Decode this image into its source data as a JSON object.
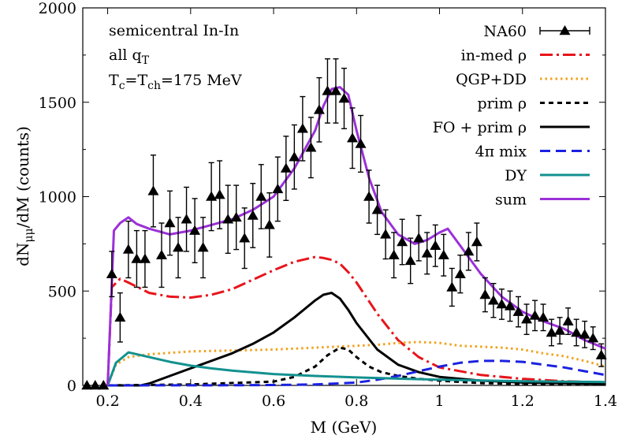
{
  "chart_data": {
    "type": "line",
    "xlabel": "M (GeV)",
    "ylabel": "dN_μμ/dM (counts)",
    "xlim": [
      0.14,
      1.4
    ],
    "ylim": [
      0,
      2000
    ],
    "grid": false,
    "legend_position": "top-right",
    "xticks": [
      "0.2",
      "0.4",
      "0.6",
      "0.8",
      "1",
      "1.2",
      "1.4"
    ],
    "yticks": [
      "0",
      "500",
      "1000",
      "1500",
      "2000"
    ],
    "annotations": [
      "semicentral In-In",
      "all q_T",
      "T_c=T_ch=175 MeV"
    ],
    "data_points": {
      "name": "NA60",
      "color": "#000000",
      "x": [
        0.15,
        0.17,
        0.19,
        0.21,
        0.23,
        0.25,
        0.27,
        0.29,
        0.31,
        0.33,
        0.35,
        0.37,
        0.39,
        0.41,
        0.43,
        0.45,
        0.47,
        0.49,
        0.51,
        0.53,
        0.55,
        0.57,
        0.59,
        0.61,
        0.63,
        0.65,
        0.67,
        0.69,
        0.71,
        0.73,
        0.75,
        0.77,
        0.79,
        0.81,
        0.83,
        0.85,
        0.87,
        0.89,
        0.91,
        0.93,
        0.95,
        0.97,
        0.99,
        1.01,
        1.03,
        1.05,
        1.07,
        1.09,
        1.11,
        1.13,
        1.15,
        1.17,
        1.19,
        1.21,
        1.23,
        1.25,
        1.27,
        1.29,
        1.31,
        1.33,
        1.35,
        1.37,
        1.39
      ],
      "y": [
        0,
        0,
        0,
        590,
        360,
        720,
        670,
        670,
        1030,
        690,
        860,
        730,
        880,
        820,
        730,
        1000,
        1010,
        880,
        890,
        780,
        900,
        1000,
        850,
        1040,
        1150,
        1210,
        1360,
        1260,
        1460,
        1560,
        1560,
        1520,
        1310,
        1280,
        1000,
        930,
        800,
        690,
        760,
        660,
        780,
        700,
        740,
        690,
        520,
        590,
        710,
        760,
        480,
        450,
        430,
        420,
        390,
        350,
        370,
        360,
        280,
        290,
        340,
        280,
        270,
        250,
        160
      ],
      "err": [
        0,
        0,
        0,
        120,
        130,
        150,
        150,
        150,
        190,
        170,
        170,
        160,
        170,
        170,
        160,
        180,
        180,
        180,
        170,
        160,
        170,
        170,
        170,
        170,
        170,
        170,
        170,
        160,
        170,
        170,
        170,
        160,
        160,
        150,
        140,
        130,
        130,
        120,
        120,
        120,
        120,
        110,
        110,
        110,
        100,
        100,
        100,
        100,
        90,
        90,
        80,
        80,
        80,
        80,
        80,
        70,
        70,
        70,
        70,
        70,
        70,
        60,
        60
      ]
    },
    "series": [
      {
        "name": "in-med ρ",
        "color": "#e8141b",
        "dash": "dash-dot",
        "x": [
          0.2,
          0.21,
          0.23,
          0.25,
          0.3,
          0.35,
          0.4,
          0.45,
          0.5,
          0.55,
          0.6,
          0.65,
          0.7,
          0.72,
          0.74,
          0.76,
          0.78,
          0.8,
          0.85,
          0.9,
          0.95,
          1.0,
          1.1,
          1.2,
          1.3,
          1.4
        ],
        "y": [
          0,
          520,
          565,
          545,
          490,
          470,
          465,
          480,
          510,
          560,
          610,
          655,
          680,
          675,
          665,
          645,
          600,
          545,
          380,
          240,
          150,
          95,
          55,
          35,
          22,
          15
        ]
      },
      {
        "name": "QGP+DD",
        "color": "#f2a21d",
        "dash": "dotted",
        "x": [
          0.2,
          0.22,
          0.25,
          0.3,
          0.4,
          0.5,
          0.6,
          0.7,
          0.75,
          0.8,
          0.85,
          0.9,
          0.95,
          1.0,
          1.05,
          1.1,
          1.15,
          1.2,
          1.25,
          1.3,
          1.35,
          1.4
        ],
        "y": [
          0,
          110,
          150,
          165,
          180,
          185,
          190,
          200,
          205,
          210,
          215,
          225,
          230,
          225,
          210,
          205,
          200,
          190,
          170,
          155,
          130,
          100
        ]
      },
      {
        "name": "prim ρ",
        "color": "#000000",
        "dash": "short-dash",
        "x": [
          0.2,
          0.4,
          0.6,
          0.65,
          0.7,
          0.73,
          0.76,
          0.78,
          0.8,
          0.83,
          0.86,
          0.9,
          0.95,
          1.0,
          1.1,
          1.2,
          1.4
        ],
        "y": [
          0,
          5,
          20,
          45,
          100,
          160,
          200,
          190,
          150,
          100,
          70,
          50,
          35,
          25,
          12,
          8,
          5
        ]
      },
      {
        "name": "FO + prim ρ",
        "color": "#000000",
        "dash": "solid",
        "x": [
          0.2,
          0.28,
          0.3,
          0.35,
          0.4,
          0.45,
          0.5,
          0.55,
          0.6,
          0.65,
          0.7,
          0.72,
          0.74,
          0.76,
          0.78,
          0.8,
          0.85,
          0.9,
          0.95,
          1.0,
          1.1,
          1.2,
          1.4
        ],
        "y": [
          0,
          0,
          10,
          50,
          90,
          130,
          170,
          220,
          280,
          360,
          450,
          480,
          490,
          460,
          400,
          330,
          190,
          110,
          70,
          45,
          25,
          15,
          8
        ]
      },
      {
        "name": "4π mix",
        "color": "#1a21e0",
        "dash": "long-dash",
        "x": [
          0.2,
          0.5,
          0.6,
          0.7,
          0.8,
          0.85,
          0.9,
          0.95,
          1.0,
          1.05,
          1.1,
          1.15,
          1.2,
          1.25,
          1.3,
          1.35,
          1.4
        ],
        "y": [
          0,
          1,
          2,
          5,
          15,
          30,
          50,
          75,
          100,
          120,
          130,
          130,
          125,
          110,
          95,
          75,
          55
        ]
      },
      {
        "name": "DY",
        "color": "#13918f",
        "dash": "solid",
        "x": [
          0.2,
          0.22,
          0.25,
          0.3,
          0.35,
          0.4,
          0.45,
          0.5,
          0.6,
          0.7,
          0.8,
          0.9,
          1.0,
          1.1,
          1.2,
          1.3,
          1.4
        ],
        "y": [
          0,
          120,
          175,
          150,
          125,
          105,
          90,
          78,
          60,
          50,
          42,
          36,
          30,
          26,
          22,
          20,
          18
        ]
      },
      {
        "name": "sum",
        "color": "#9b30d9",
        "dash": "solid",
        "x": [
          0.2,
          0.215,
          0.23,
          0.25,
          0.27,
          0.3,
          0.35,
          0.4,
          0.45,
          0.5,
          0.55,
          0.6,
          0.65,
          0.7,
          0.72,
          0.74,
          0.76,
          0.78,
          0.8,
          0.83,
          0.86,
          0.9,
          0.94,
          0.97,
          1.0,
          1.02,
          1.05,
          1.1,
          1.15,
          1.2,
          1.25,
          1.3,
          1.35,
          1.4
        ],
        "y": [
          0,
          820,
          860,
          890,
          855,
          830,
          800,
          820,
          850,
          880,
          930,
          1000,
          1150,
          1350,
          1480,
          1570,
          1580,
          1540,
          1350,
          1100,
          920,
          800,
          750,
          770,
          810,
          830,
          740,
          590,
          470,
          390,
          340,
          300,
          240,
          195
        ]
      }
    ]
  }
}
